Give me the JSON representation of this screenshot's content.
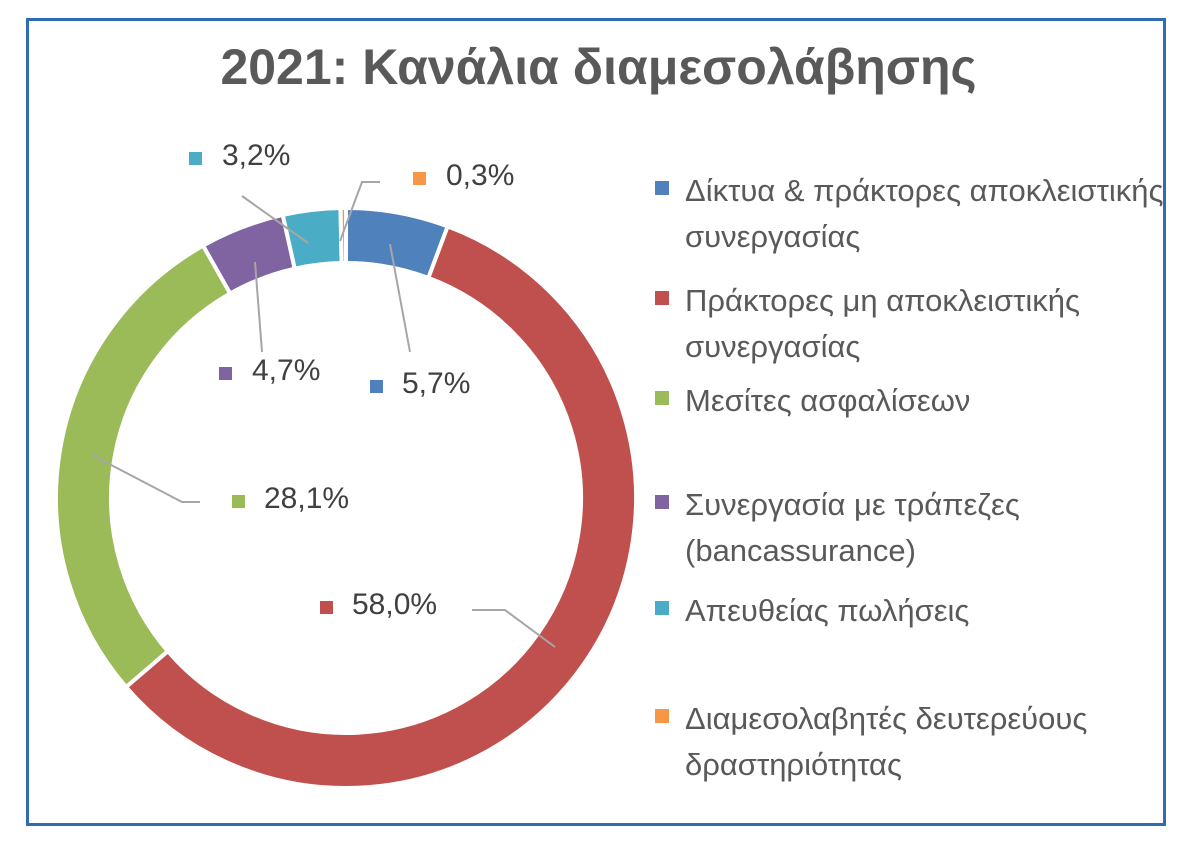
{
  "chart_data": {
    "type": "pie",
    "title": "2021: Κανάλια διαμεσολάβησης",
    "donut": true,
    "legend_position": "right",
    "series": [
      {
        "name": "Δίκτυα & πράκτορες αποκλειστικής συνεργασίας",
        "value": 5.7,
        "label": "5,7%",
        "color": "#4f81bd"
      },
      {
        "name": "Πράκτορες μη αποκλειστικής συνεργασίας",
        "value": 58.0,
        "label": "58,0%",
        "color": "#c0504d"
      },
      {
        "name": "Μεσίτες ασφαλίσεων",
        "value": 28.1,
        "label": "28,1%",
        "color": "#9bbb59"
      },
      {
        "name": "Συνεργασία με τράπεζες (bancassurance)",
        "value": 4.7,
        "label": "4,7%",
        "color": "#8064a2"
      },
      {
        "name": "Απευθείας πωλήσεις",
        "value": 3.2,
        "label": "3,2%",
        "color": "#4bacc6"
      },
      {
        "name": "Διαμεσολαβητές δευτερεύους δραστηριότητας",
        "value": 0.3,
        "label": "0,3%",
        "color": "#f79646"
      }
    ]
  }
}
